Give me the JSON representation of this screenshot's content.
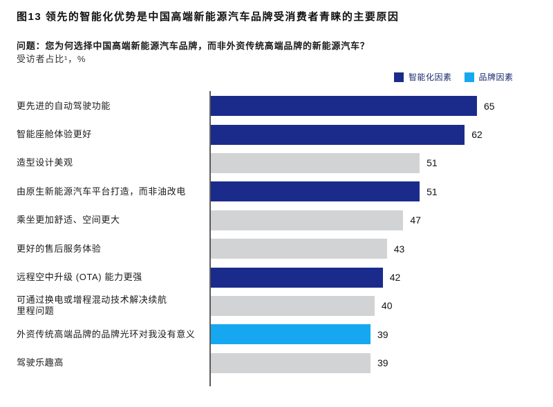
{
  "header": {
    "figure_title": "图13 领先的智能化优势是中国高端新能源汽车品牌受消费者青睐的主要原因",
    "question": "问题：您为何选择中国高端新能源汽车品牌，而非外资传统高端品牌的新能源汽车？",
    "unit_note": "受访者占比¹，%"
  },
  "legend": {
    "items": [
      {
        "label": "智能化因素",
        "key": "intelligence"
      },
      {
        "label": "品牌因素",
        "key": "brand"
      }
    ]
  },
  "chart_data": {
    "type": "bar",
    "orientation": "horizontal",
    "title": "图13 领先的智能化优势是中国高端新能源汽车品牌受消费者青睐的主要原因",
    "xlabel": "受访者占比，%",
    "ylabel": "",
    "xlim": [
      0,
      65
    ],
    "grid": false,
    "legend_position": "top-right",
    "categories": [
      "更先进的自动驾驶功能",
      "智能座舱体验更好",
      "造型设计美观",
      "由原生新能源汽车平台打造，而非油改电",
      "乘坐更加舒适、空间更大",
      "更好的售后服务体验",
      "远程空中升级 (OTA) 能力更强",
      "可通过换电或增程混动技术解决续航\n里程问题",
      "外资传统高端品牌的品牌光环对我没有意义",
      "驾驶乐趣高"
    ],
    "values": [
      65,
      62,
      51,
      51,
      47,
      43,
      42,
      40,
      39,
      39
    ],
    "groups": [
      "intelligence",
      "intelligence",
      "other",
      "intelligence",
      "other",
      "other",
      "intelligence",
      "other",
      "brand",
      "other"
    ],
    "bar_colors": {
      "intelligence": "#1b2b8c",
      "brand": "#15a8f0",
      "other": "#d2d3d4"
    }
  }
}
